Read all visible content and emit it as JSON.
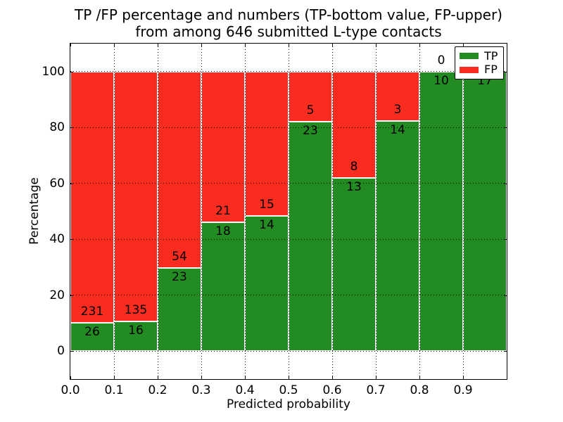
{
  "title": {
    "line1": "TP /FP percentage and numbers (TP-bottom value, FP-upper)",
    "line2": "from among 646 submitted L-type contacts"
  },
  "axes": {
    "xlabel": "Predicted probability",
    "ylabel": "Percentage"
  },
  "legend": {
    "items": [
      {
        "label": "TP",
        "color": "#228b22"
      },
      {
        "label": "FP",
        "color": "#fa2b1f"
      }
    ]
  },
  "colors": {
    "tp": "#228b22",
    "fp": "#fa2b1f",
    "grid": "#000000",
    "bar_edge": "#ffffff",
    "background": "#ffffff",
    "text": "#000000"
  },
  "chart_data": {
    "type": "bar",
    "stacked": true,
    "normalized_to_percent": true,
    "title": "TP /FP percentage and numbers (TP-bottom value, FP-upper) from among 646 submitted L-type contacts",
    "xlabel": "Predicted probability",
    "ylabel": "Percentage",
    "x_bins": [
      "0.0-0.1",
      "0.1-0.2",
      "0.2-0.3",
      "0.3-0.4",
      "0.4-0.5",
      "0.5-0.6",
      "0.6-0.7",
      "0.7-0.8",
      "0.8-0.9",
      "0.9-1.0"
    ],
    "series": [
      {
        "name": "TP",
        "values": [
          26,
          16,
          23,
          18,
          14,
          23,
          13,
          14,
          10,
          17
        ]
      },
      {
        "name": "FP",
        "values": [
          231,
          135,
          54,
          21,
          15,
          5,
          8,
          3,
          0,
          0
        ]
      }
    ],
    "x_ticks": [
      "0.0",
      "0.1",
      "0.2",
      "0.3",
      "0.4",
      "0.5",
      "0.6",
      "0.7",
      "0.8",
      "0.9"
    ],
    "y_ticks": [
      0,
      20,
      40,
      60,
      80,
      100
    ],
    "xlim": [
      0.0,
      1.0
    ],
    "ylim": [
      -10,
      110
    ],
    "grid": true,
    "legend_position": "upper right"
  }
}
